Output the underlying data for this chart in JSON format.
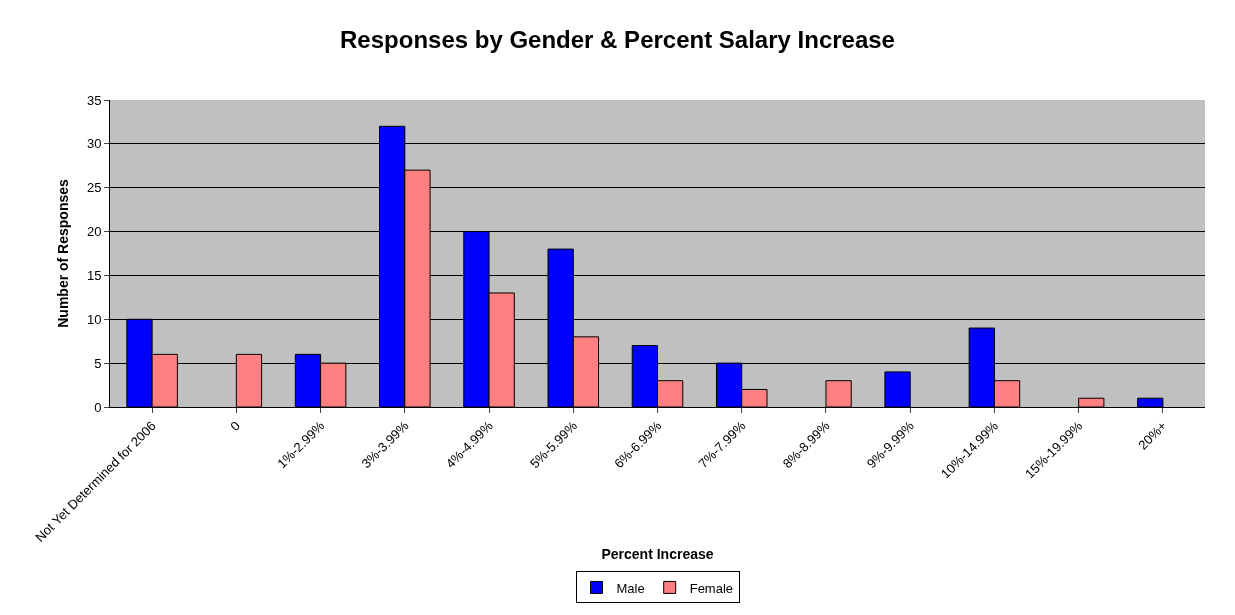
{
  "chart_data": {
    "type": "bar",
    "title": "Responses by Gender & Percent Salary Increase",
    "xlabel": "Percent Increase",
    "ylabel": "Number of Responses",
    "categories": [
      "Not Yet Determined for 2006",
      "0",
      "1%-2.99%",
      "3%-3.99%",
      "4%-4.99%",
      "5%-5.99%",
      "6%-6.99%",
      "7%-7.99%",
      "8%-8.99%",
      "9%-9.99%",
      "10%-14.99%",
      "15%-19.99%",
      "20%+"
    ],
    "series": [
      {
        "name": "Male",
        "color": "#0000ff",
        "values": [
          10,
          null,
          6,
          32,
          20,
          18,
          7,
          5,
          null,
          4,
          9,
          null,
          1
        ]
      },
      {
        "name": "Female",
        "color": "#ff8080",
        "values": [
          6,
          6,
          5,
          27,
          13,
          8,
          3,
          2,
          3,
          null,
          3,
          1,
          null
        ]
      }
    ],
    "ylim": [
      0,
      35
    ],
    "yticks": [
      0,
      5,
      10,
      15,
      20,
      25,
      30,
      35
    ],
    "grid": "y",
    "legend": "bottom"
  }
}
